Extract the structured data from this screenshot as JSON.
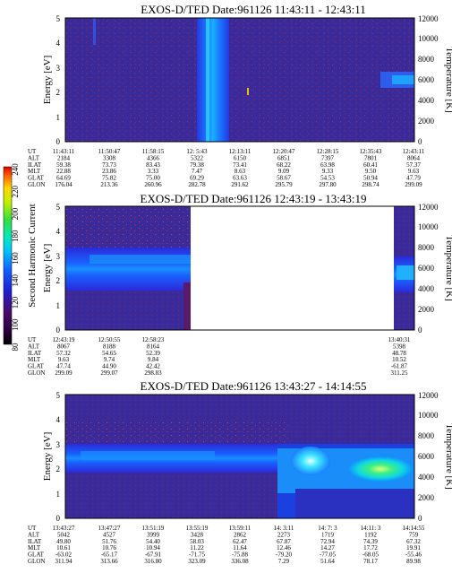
{
  "colorbar": {
    "label": "Second Harmonic Current",
    "ticks": [
      "80",
      "100",
      "120",
      "140",
      "160",
      "180",
      "200",
      "220",
      "240"
    ]
  },
  "panels": [
    {
      "title": "EXOS-D/TED   Date:961126   11:43:11 - 12:43:11",
      "ylabel": "Energy [eV]",
      "y2label": "Temperature [K]",
      "yticks": [
        "0",
        "1",
        "2",
        "3",
        "4",
        "5"
      ],
      "y2ticks": [
        "0",
        "2000",
        "4000",
        "6000",
        "8000",
        "10000",
        "12000"
      ],
      "rowlabels": [
        "UT",
        "ALT",
        "ILAT",
        "MLT",
        "GLAT",
        "GLON"
      ],
      "columns": [
        [
          "11:43:11",
          "2184",
          "59.38",
          "22.88",
          "64.69",
          "176.04"
        ],
        [
          "11:50:47",
          "3308",
          "73.73",
          "23.86",
          "75.82",
          "213.36"
        ],
        [
          "11:58:15",
          "4366",
          "83.43",
          "3.33",
          "75.00",
          "260.96"
        ],
        [
          "12: 5:43",
          "5322",
          "79.38",
          "7.47",
          "69.29",
          "282.78"
        ],
        [
          "12:13:11",
          "6150",
          "73.41",
          "8.63",
          "63.63",
          "291.62"
        ],
        [
          "12:20:47",
          "6851",
          "68.22",
          "9.09",
          "58.67",
          "295.79"
        ],
        [
          "12:28:15",
          "7397",
          "63.98",
          "9.33",
          "54.53",
          "297.80"
        ],
        [
          "12:35:43",
          "7801",
          "60.41",
          "9.50",
          "50.94",
          "298.74"
        ],
        [
          "12:43:11",
          "8064",
          "57.37",
          "9.63",
          "47.79",
          "299.09"
        ]
      ]
    },
    {
      "title": "EXOS-D/TED   Date:961126   12:43:19 - 13:43:19",
      "ylabel": "Energy [eV]",
      "y2label": "Temperature [K]",
      "yticks": [
        "0",
        "1",
        "2",
        "3",
        "4",
        "5"
      ],
      "y2ticks": [
        "0",
        "2000",
        "4000",
        "6000",
        "8000",
        "10000",
        "12000"
      ],
      "rowlabels": [
        "UT",
        "ALT",
        "ILAT",
        "MLT",
        "GLAT",
        "GLON"
      ],
      "columns": [
        [
          "12:43:19",
          "8067",
          "57.32",
          "9.63",
          "47.74",
          "299.09"
        ],
        [
          "12:50:55",
          "8188",
          "54.65",
          "9.74",
          "44.90",
          "299.07"
        ],
        [
          "12:58:23",
          "8164",
          "52.39",
          "9.84",
          "42.42",
          "298.83"
        ],
        [
          "13:40:31",
          "5398",
          "48.78",
          "10.52",
          "-61.87",
          "311.25"
        ]
      ]
    },
    {
      "title": "EXOS-D/TED   Date:961126   13:43:27 - 14:14:55",
      "ylabel": "Energy [eV]",
      "y2label": "Temperature [K]",
      "yticks": [
        "0",
        "1",
        "2",
        "3",
        "4",
        "5"
      ],
      "y2ticks": [
        "0",
        "2000",
        "4000",
        "6000",
        "8000",
        "10000",
        "12000"
      ],
      "rowlabels": [
        "UT",
        "ALT",
        "ILAT",
        "MLT",
        "GLAT",
        "GLON"
      ],
      "columns": [
        [
          "13:43:27",
          "5042",
          "49.80",
          "10.61",
          "-63.02",
          "311.94"
        ],
        [
          "13:47:27",
          "4527",
          "51.76",
          "10.76",
          "-65.17",
          "313.66"
        ],
        [
          "13:51:19",
          "3999",
          "54.40",
          "10.94",
          "-67.91",
          "316.80"
        ],
        [
          "13:55:19",
          "3428",
          "58.03",
          "11.22",
          "-71.75",
          "323.09"
        ],
        [
          "13:59:11",
          "2862",
          "62.47",
          "11.64",
          "-75.88",
          "336.08"
        ],
        [
          "14: 3:11",
          "2273",
          "67.87",
          "12.46",
          "-79.20",
          "7.29"
        ],
        [
          "14: 7: 3",
          "1719",
          "72.94",
          "14.27",
          "-77.05",
          "51.64"
        ],
        [
          "14:11: 3",
          "1192",
          "74.39",
          "17.72",
          "-68.05",
          "78.17"
        ],
        [
          "14:14:55",
          "759",
          "67.32",
          "19.91",
          "-55.46",
          "89.98"
        ]
      ]
    }
  ],
  "chart_data": [
    {
      "type": "heatmap",
      "title": "EXOS-D/TED   Date:961126   11:43:11 - 12:43:11",
      "xlabel": "UT",
      "ylabel": "Energy [eV]",
      "y2label": "Temperature [K]",
      "ylim": [
        0,
        5
      ],
      "y2lim": [
        0,
        12000
      ],
      "colorbar_label": "Second Harmonic Current",
      "colorbar_range": [
        80,
        240
      ],
      "x": [
        "11:43:11",
        "11:50:47",
        "11:58:15",
        "12: 5:43",
        "12:13:11",
        "12:20:47",
        "12:28:15",
        "12:35:43",
        "12:43:11"
      ]
    },
    {
      "type": "heatmap",
      "title": "EXOS-D/TED   Date:961126   12:43:19 - 13:43:19",
      "xlabel": "UT",
      "ylabel": "Energy [eV]",
      "y2label": "Temperature [K]",
      "ylim": [
        0,
        5
      ],
      "y2lim": [
        0,
        12000
      ],
      "colorbar_label": "Second Harmonic Current",
      "colorbar_range": [
        80,
        240
      ],
      "x": [
        "12:43:19",
        "12:50:55",
        "12:58:23",
        "13:40:31"
      ]
    },
    {
      "type": "heatmap",
      "title": "EXOS-D/TED   Date:961126   13:43:27 - 14:14:55",
      "xlabel": "UT",
      "ylabel": "Energy [eV]",
      "y2label": "Temperature [K]",
      "ylim": [
        0,
        5
      ],
      "y2lim": [
        0,
        12000
      ],
      "colorbar_label": "Second Harmonic Current",
      "colorbar_range": [
        80,
        240
      ],
      "x": [
        "13:43:27",
        "13:47:27",
        "13:51:19",
        "13:55:19",
        "13:59:11",
        "14: 3:11",
        "14: 7: 3",
        "14:11: 3",
        "14:14:55"
      ]
    }
  ]
}
